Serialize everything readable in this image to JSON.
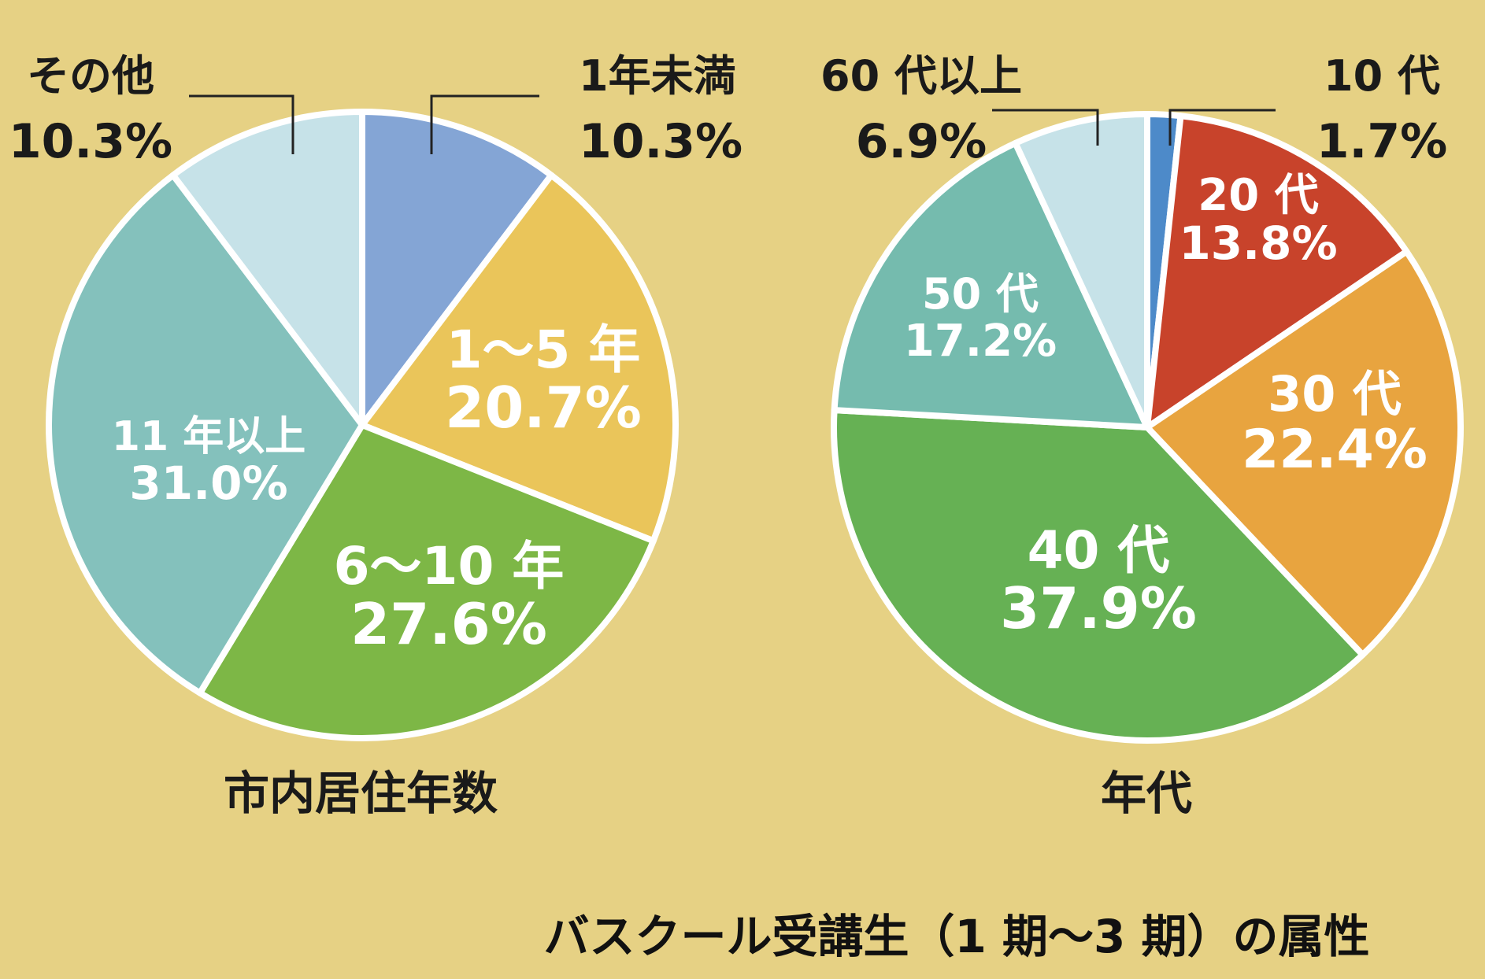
{
  "footer_title": "バスクール受講生（1 期～3 期）の属性",
  "chart_data": [
    {
      "type": "pie",
      "title": "市内居住年数",
      "start_angle_deg": 0,
      "direction": "clockwise",
      "slices": [
        {
          "label": "1年未満",
          "value": 10.3,
          "value_text": "10.3%",
          "color": "#84a5d5",
          "label_placement": "outside"
        },
        {
          "label": "1～5 年",
          "value": 20.7,
          "value_text": "20.7%",
          "color": "#eac55a",
          "label_placement": "inside"
        },
        {
          "label": "6～10 年",
          "value": 27.6,
          "value_text": "27.6%",
          "color": "#7db746",
          "label_placement": "inside"
        },
        {
          "label": "11 年以上",
          "value": 31.0,
          "value_text": "31.0%",
          "color": "#84c1bc",
          "label_placement": "inside"
        },
        {
          "label": "その他",
          "value": 10.3,
          "value_text": "10.3%",
          "color": "#c6e2e8",
          "label_placement": "outside"
        }
      ]
    },
    {
      "type": "pie",
      "title": "年代",
      "start_angle_deg": 0,
      "direction": "clockwise",
      "slices": [
        {
          "label": "10 代",
          "value": 1.7,
          "value_text": "1.7%",
          "color": "#4d8ac9",
          "label_placement": "outside"
        },
        {
          "label": "20 代",
          "value": 13.8,
          "value_text": "13.8%",
          "color": "#c8432b",
          "label_placement": "inside"
        },
        {
          "label": "30 代",
          "value": 22.4,
          "value_text": "22.4%",
          "color": "#e8a43f",
          "label_placement": "inside"
        },
        {
          "label": "40 代",
          "value": 37.9,
          "value_text": "37.9%",
          "color": "#66b154",
          "label_placement": "inside"
        },
        {
          "label": "50 代",
          "value": 17.2,
          "value_text": "17.2%",
          "color": "#75bbae",
          "label_placement": "inside"
        },
        {
          "label": "60 代以上",
          "value": 6.9,
          "value_text": "6.9%",
          "color": "#c6e2e8",
          "label_placement": "outside"
        }
      ]
    }
  ]
}
